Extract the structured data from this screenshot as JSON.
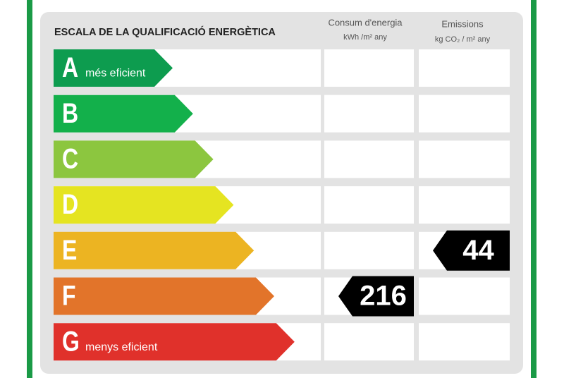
{
  "title": "ESCALA DE LA QUALIFICACIÓ ENERGÈTICA",
  "columns": {
    "consumption": {
      "title": "Consum d'energia",
      "unit": "kWh /m² any"
    },
    "emissions": {
      "title": "Emissions",
      "unit": "kg CO₂ / m² any"
    }
  },
  "rows": [
    {
      "letter": "A",
      "label": "més eficient",
      "color": "#0d9c4f"
    },
    {
      "letter": "B",
      "color": "#13b04b"
    },
    {
      "letter": "C",
      "color": "#8cc63f"
    },
    {
      "letter": "D",
      "color": "#e5e421"
    },
    {
      "letter": "E",
      "color": "#ecb422",
      "emissions": 44
    },
    {
      "letter": "F",
      "color": "#e2742a",
      "consumption": 216
    },
    {
      "letter": "G",
      "label": "menys eficient",
      "color": "#e0312b"
    }
  ]
}
